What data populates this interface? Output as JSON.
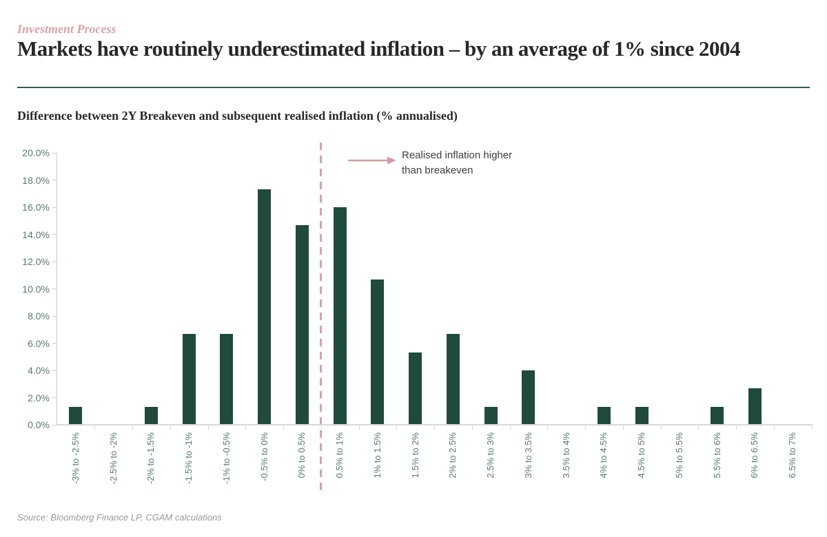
{
  "header": {
    "eyebrow": "Investment Process",
    "title": "Markets have routinely underestimated inflation – by an average of 1% since 2004"
  },
  "subtitle": "Difference between 2Y Breakeven and subsequent realised inflation (% annualised)",
  "annotation": {
    "line1": "Realised inflation higher",
    "line2": "than breakeven",
    "arrow_icon": "right-arrow"
  },
  "source": "Source: Bloomberg Finance LP, CGAM calculations",
  "colors": {
    "eyebrow_pink": "#d9a2a8",
    "title_dark": "#2a2825",
    "divider_green": "#2f5d50",
    "bar_green": "#1f4a3c",
    "dashed_pink": "#d9a2a7",
    "arrow_pink": "#d49aa0",
    "tick_label_green": "#587a6d",
    "y_axis_gray": "#c7cec9",
    "x_axis_gray": "#d8d8d6",
    "annotation_dark": "#3d3d3d",
    "source_gray": "#949ba1"
  },
  "chart_data": {
    "type": "bar",
    "title": "Difference between 2Y Breakeven and subsequent realised inflation (% annualised)",
    "categories": [
      "-3% to -2.5%",
      "-2.5% to -2%",
      "-2% to -1.5%",
      "-1.5% to -1%",
      "-1% to -0.5%",
      "-0.5% to 0%",
      "0% to 0.5%",
      "0.5% to 1%",
      "1% to 1.5%",
      "1.5% to 2%",
      "2% to 2.5%",
      "2.5% to 3%",
      "3% to 3.5%",
      "3.5% to 4%",
      "4% to 4.5%",
      "4.5% to 5%",
      "5% to 5.5%",
      "5.5% to 6%",
      "6% to 6.5%",
      "6.5% to 7%"
    ],
    "values": [
      1.33,
      0,
      1.33,
      6.67,
      6.67,
      17.33,
      14.67,
      16.0,
      10.67,
      5.33,
      6.67,
      1.33,
      4.0,
      0,
      1.33,
      1.33,
      0,
      1.33,
      2.67,
      0
    ],
    "y_ticks": [
      "0.0%",
      "2.0%",
      "4.0%",
      "6.0%",
      "8.0%",
      "10.0%",
      "12.0%",
      "14.0%",
      "16.0%",
      "18.0%",
      "20.0%"
    ],
    "ylim": [
      0,
      20
    ],
    "y_tick_step": 2,
    "xlabel": "",
    "ylabel": "",
    "grid": "off",
    "legend": "none",
    "divider_bin_boundary": 7,
    "divider_note": "dashed pink vertical line between '0% to 0.5%' and '0.5% to 1%'"
  }
}
